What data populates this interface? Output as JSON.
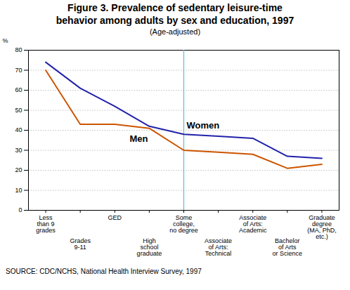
{
  "chart_data": {
    "type": "line",
    "title": "Figure 3.  Prevalence of sedentary leisure-time\nbehavior among adults by sex and education, 1997",
    "subtitle": "(Age-adjusted)",
    "ylabel": "%",
    "source": "SOURCE: CDC/NCHS, National Health Interview Survey, 1997",
    "categories": [
      "Less\nthan 9\ngrades",
      "Grades\n9-11",
      "GED",
      "High\nschool\ngraduate",
      "Some\ncollege,\nno degree",
      "Associate\nof Arts:\nTechnical",
      "Associate\nof Arts:\nAcademic",
      "Bachelor\nof Arts\nor Science",
      "Graduate\ndegree\n(MA, PhD,\netc.)"
    ],
    "series": [
      {
        "name": "Women",
        "color": "#2222aa",
        "values": [
          74,
          61,
          52,
          42,
          38,
          37,
          36,
          27,
          26
        ]
      },
      {
        "name": "Men",
        "color": "#cc5500",
        "values": [
          70,
          43,
          43,
          41,
          30,
          29,
          28,
          21,
          23
        ]
      }
    ],
    "ylim": [
      0,
      80
    ],
    "yticks": [
      0,
      10,
      20,
      30,
      40,
      50,
      60,
      70,
      80
    ],
    "grid": true
  }
}
